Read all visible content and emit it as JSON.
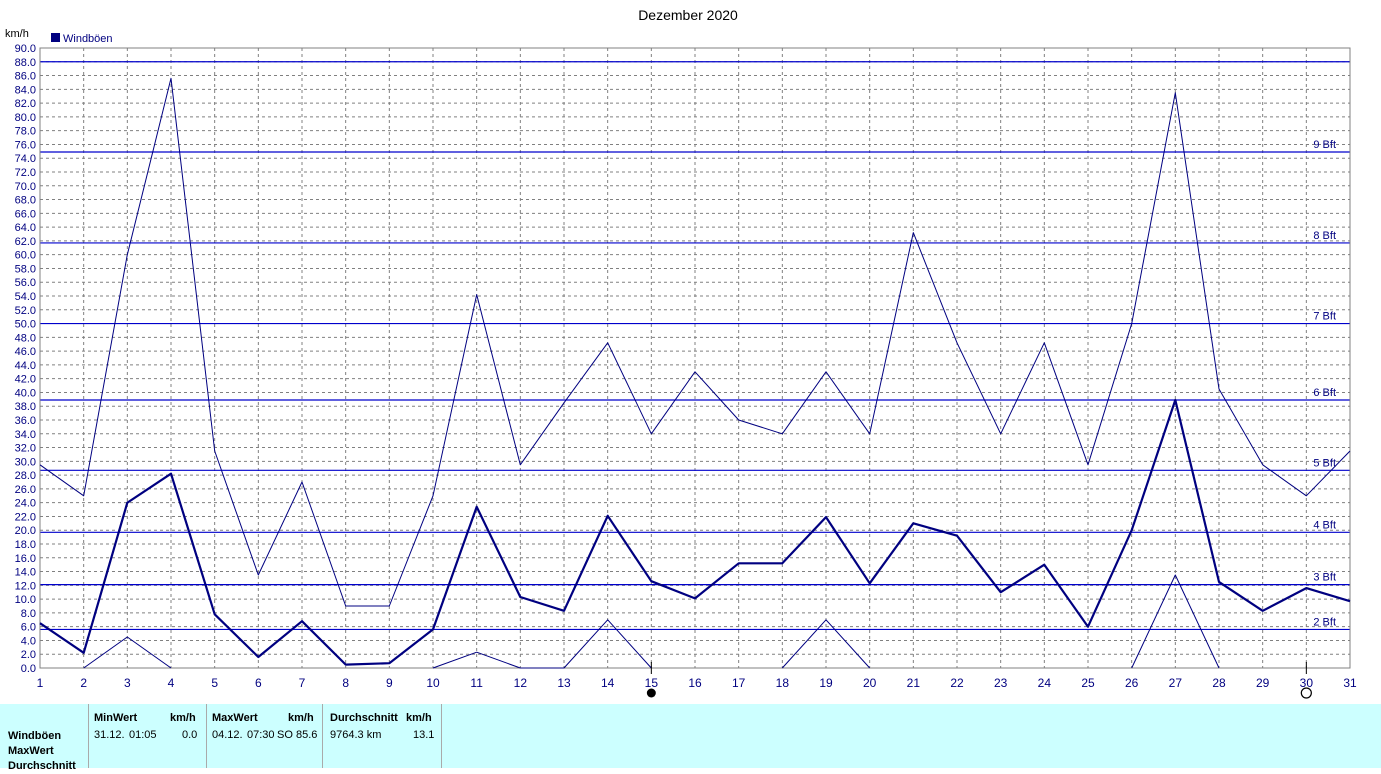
{
  "chart_data": {
    "type": "line",
    "title": "Dezember 2020",
    "ylabel": "km/h",
    "ylim": [
      0,
      90
    ],
    "ytick_step": 2,
    "x": [
      1,
      2,
      3,
      4,
      5,
      6,
      7,
      8,
      9,
      10,
      11,
      12,
      13,
      14,
      15,
      16,
      17,
      18,
      19,
      20,
      21,
      22,
      23,
      24,
      25,
      26,
      27,
      28,
      29,
      30,
      31
    ],
    "xlim": [
      1,
      31
    ],
    "legend": "Windböen",
    "legend_position": "top-left",
    "grid": true,
    "series": [
      {
        "name": "Windböen",
        "role": "average",
        "values": [
          6.5,
          2.2,
          24,
          28.2,
          7.8,
          1.6,
          6.8,
          0.5,
          0.7,
          5.6,
          23.4,
          10.3,
          8.3,
          22.1,
          12.6,
          10.1,
          15.2,
          15.2,
          21.9,
          12.3,
          21,
          19.2,
          11,
          15,
          6,
          20,
          38.9,
          12.5,
          8.3,
          11.6,
          9.7
        ]
      },
      {
        "name": "MaxWert",
        "role": "max",
        "values": [
          29.5,
          25,
          60,
          85.6,
          31.5,
          13.5,
          27,
          9,
          9,
          25,
          54.2,
          29.5,
          38.5,
          47.2,
          34,
          43,
          36,
          34,
          43,
          34,
          63.2,
          47.2,
          34,
          47.2,
          29.5,
          50,
          83.5,
          40.5,
          29.5,
          25,
          31.5
        ]
      },
      {
        "name": "MinWert",
        "role": "min",
        "values": [
          null,
          0,
          4.5,
          0,
          null,
          null,
          null,
          null,
          null,
          0,
          2.3,
          0,
          0,
          7,
          0,
          null,
          null,
          0,
          7,
          0,
          null,
          null,
          null,
          null,
          null,
          0,
          13.5,
          0,
          null,
          null,
          null
        ]
      }
    ],
    "reference_lines": [
      {
        "label": "2 Bft",
        "value": 5.6
      },
      {
        "label": "3 Bft",
        "value": 12.1
      },
      {
        "label": "4 Bft",
        "value": 19.7
      },
      {
        "label": "5 Bft",
        "value": 28.7
      },
      {
        "label": "6 Bft",
        "value": 38.9
      },
      {
        "label": "7 Bft",
        "value": 50
      },
      {
        "label": "8 Bft",
        "value": 61.7
      },
      {
        "label": "9 Bft",
        "value": 74.9
      },
      {
        "label": "",
        "value": 88
      }
    ],
    "moon_phases": [
      {
        "day": 15,
        "phase": "new-moon"
      },
      {
        "day": 30,
        "phase": "full-moon"
      }
    ]
  },
  "colors": {
    "series": "#000080",
    "reference": "#0000cc",
    "grid": "#808080",
    "table_bg": "#ccffff"
  },
  "table": {
    "row_labels": [
      "Windböen",
      "MaxWert",
      "Durchschnitt"
    ],
    "columns": [
      {
        "header": "MinWert",
        "unit": "km/h",
        "date": "31.12.",
        "time": "01:05",
        "value": "0.0"
      },
      {
        "header": "MaxWert",
        "unit": "km/h",
        "date": "04.12.",
        "time": "07:30",
        "extra": "SO",
        "value": "85.6"
      },
      {
        "header": "Durchschnitt",
        "unit": "km/h",
        "distance": "9764.3 km",
        "value": "13.1"
      }
    ]
  }
}
